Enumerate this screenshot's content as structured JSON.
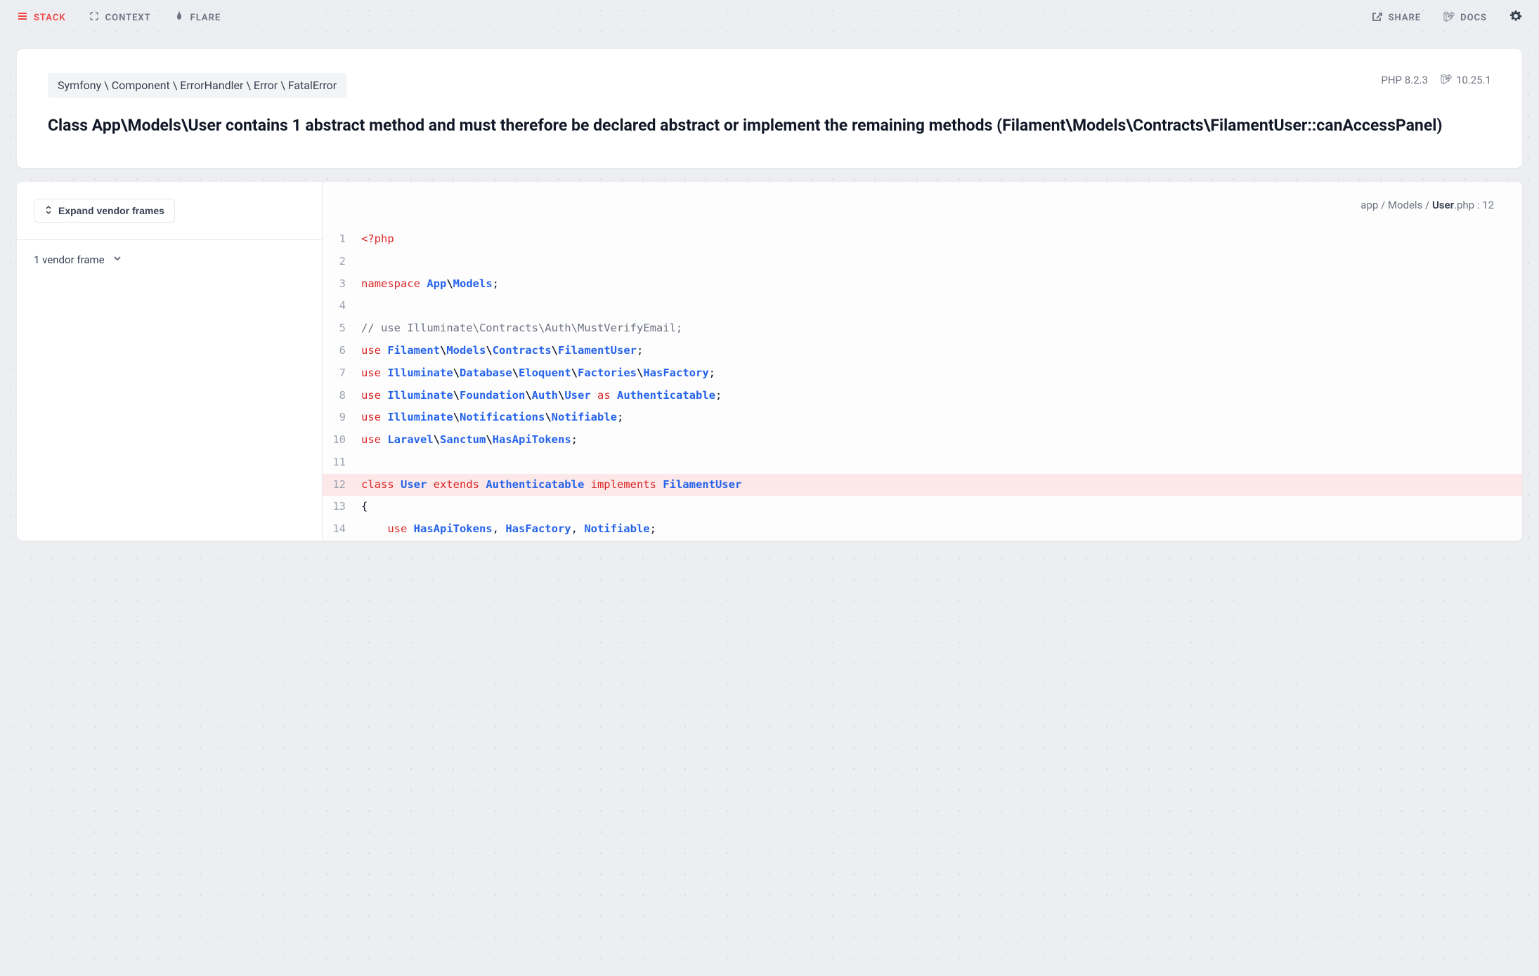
{
  "nav": {
    "tabs": {
      "stack": "STACK",
      "context": "CONTEXT",
      "flare": "FLARE"
    },
    "share": "SHARE",
    "docs": "DOCS"
  },
  "error": {
    "breadcrumb": "Symfony \\ Component \\ ErrorHandler \\ Error \\ FatalError",
    "php_label": "PHP 8.2.3",
    "laravel_version": "10.25.1",
    "title": "Class App\\Models\\User contains 1 abstract method and must therefore be declared abstract or implement the remaining methods (Filament\\Models\\Contracts\\FilamentUser::canAccessPanel)"
  },
  "sidebar": {
    "expand_label": "Expand vendor frames",
    "frame_item": "1 vendor frame"
  },
  "file": {
    "path_prefix": "app / Models / ",
    "filename": "User",
    "extension": ".php",
    "line_suffix": " : 12"
  },
  "code": {
    "highlighted_line": 12,
    "lines": [
      {
        "n": 1,
        "tokens": [
          {
            "t": "<?php",
            "c": "tok-keyword"
          }
        ]
      },
      {
        "n": 2,
        "tokens": []
      },
      {
        "n": 3,
        "tokens": [
          {
            "t": "namespace ",
            "c": "tok-keyword"
          },
          {
            "t": "App",
            "c": "tok-ns"
          },
          {
            "t": "\\",
            "c": "tok-punct tok-bold"
          },
          {
            "t": "Models",
            "c": "tok-ns"
          },
          {
            "t": ";",
            "c": "tok-punct"
          }
        ]
      },
      {
        "n": 4,
        "tokens": []
      },
      {
        "n": 5,
        "tokens": [
          {
            "t": "// use Illuminate\\Contracts\\Auth\\MustVerifyEmail;",
            "c": "tok-comment"
          }
        ]
      },
      {
        "n": 6,
        "tokens": [
          {
            "t": "use ",
            "c": "tok-keyword"
          },
          {
            "t": "Filament",
            "c": "tok-ns"
          },
          {
            "t": "\\",
            "c": "tok-punct tok-bold"
          },
          {
            "t": "Models",
            "c": "tok-ns"
          },
          {
            "t": "\\",
            "c": "tok-punct tok-bold"
          },
          {
            "t": "Contracts",
            "c": "tok-ns"
          },
          {
            "t": "\\",
            "c": "tok-punct tok-bold"
          },
          {
            "t": "FilamentUser",
            "c": "tok-ns"
          },
          {
            "t": ";",
            "c": "tok-punct"
          }
        ]
      },
      {
        "n": 7,
        "tokens": [
          {
            "t": "use ",
            "c": "tok-keyword"
          },
          {
            "t": "Illuminate",
            "c": "tok-ns"
          },
          {
            "t": "\\",
            "c": "tok-punct tok-bold"
          },
          {
            "t": "Database",
            "c": "tok-ns"
          },
          {
            "t": "\\",
            "c": "tok-punct tok-bold"
          },
          {
            "t": "Eloquent",
            "c": "tok-ns"
          },
          {
            "t": "\\",
            "c": "tok-punct tok-bold"
          },
          {
            "t": "Factories",
            "c": "tok-ns"
          },
          {
            "t": "\\",
            "c": "tok-punct tok-bold"
          },
          {
            "t": "HasFactory",
            "c": "tok-ns"
          },
          {
            "t": ";",
            "c": "tok-punct"
          }
        ]
      },
      {
        "n": 8,
        "tokens": [
          {
            "t": "use ",
            "c": "tok-keyword"
          },
          {
            "t": "Illuminate",
            "c": "tok-ns"
          },
          {
            "t": "\\",
            "c": "tok-punct tok-bold"
          },
          {
            "t": "Foundation",
            "c": "tok-ns"
          },
          {
            "t": "\\",
            "c": "tok-punct tok-bold"
          },
          {
            "t": "Auth",
            "c": "tok-ns"
          },
          {
            "t": "\\",
            "c": "tok-punct tok-bold"
          },
          {
            "t": "User",
            "c": "tok-ns"
          },
          {
            "t": " as ",
            "c": "tok-keyword"
          },
          {
            "t": "Authenticatable",
            "c": "tok-ns"
          },
          {
            "t": ";",
            "c": "tok-punct"
          }
        ]
      },
      {
        "n": 9,
        "tokens": [
          {
            "t": "use ",
            "c": "tok-keyword"
          },
          {
            "t": "Illuminate",
            "c": "tok-ns"
          },
          {
            "t": "\\",
            "c": "tok-punct tok-bold"
          },
          {
            "t": "Notifications",
            "c": "tok-ns"
          },
          {
            "t": "\\",
            "c": "tok-punct tok-bold"
          },
          {
            "t": "Notifiable",
            "c": "tok-ns"
          },
          {
            "t": ";",
            "c": "tok-punct"
          }
        ]
      },
      {
        "n": 10,
        "tokens": [
          {
            "t": "use ",
            "c": "tok-keyword"
          },
          {
            "t": "Laravel",
            "c": "tok-ns"
          },
          {
            "t": "\\",
            "c": "tok-punct tok-bold"
          },
          {
            "t": "Sanctum",
            "c": "tok-ns"
          },
          {
            "t": "\\",
            "c": "tok-punct tok-bold"
          },
          {
            "t": "HasApiTokens",
            "c": "tok-ns"
          },
          {
            "t": ";",
            "c": "tok-punct"
          }
        ]
      },
      {
        "n": 11,
        "tokens": []
      },
      {
        "n": 12,
        "tokens": [
          {
            "t": "class ",
            "c": "tok-keyword"
          },
          {
            "t": "User",
            "c": "tok-class"
          },
          {
            "t": " extends ",
            "c": "tok-keyword"
          },
          {
            "t": "Authenticatable",
            "c": "tok-class"
          },
          {
            "t": " implements ",
            "c": "tok-keyword"
          },
          {
            "t": "FilamentUser",
            "c": "tok-class"
          }
        ]
      },
      {
        "n": 13,
        "tokens": [
          {
            "t": "{",
            "c": "tok-punct"
          }
        ]
      },
      {
        "n": 14,
        "tokens": [
          {
            "t": "    ",
            "c": ""
          },
          {
            "t": "use ",
            "c": "tok-keyword"
          },
          {
            "t": "HasApiTokens",
            "c": "tok-class"
          },
          {
            "t": ", ",
            "c": "tok-punct"
          },
          {
            "t": "HasFactory",
            "c": "tok-class"
          },
          {
            "t": ", ",
            "c": "tok-punct"
          },
          {
            "t": "Notifiable",
            "c": "tok-class"
          },
          {
            "t": ";",
            "c": "tok-punct"
          }
        ]
      }
    ]
  },
  "colors": {
    "background": "#edeef1",
    "card_bg": "#ffffff",
    "accent": "#ef4444",
    "keyword": "#dc2626",
    "class": "#2563eb",
    "comment": "#6b7280",
    "highlight_bg": "#fce8e8",
    "border": "#e5e7eb",
    "text_primary": "#111827",
    "text_secondary": "#6b7280"
  }
}
